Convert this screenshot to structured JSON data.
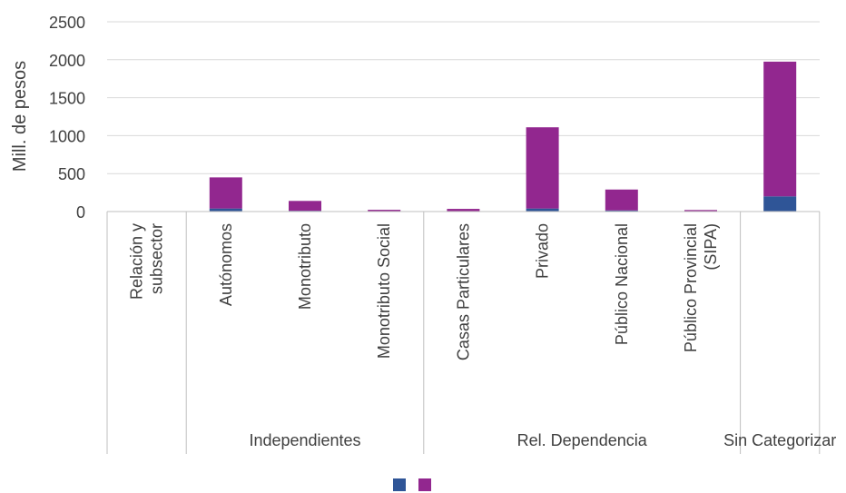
{
  "chart_data": {
    "type": "bar",
    "stacked": true,
    "ylabel": "Mill. de pesos",
    "ylim": [
      0,
      2500
    ],
    "yticks": [
      0,
      500,
      1000,
      1500,
      2000,
      2500
    ],
    "grid": true,
    "legend_position": "bottom",
    "header_category": "Relación y subsector",
    "categories": [
      "Autónomos",
      "Monotributo",
      "Monotributo Social",
      "Casas Particulares",
      "Privado",
      "Público Nacional",
      "Público Provincial (SIPA)",
      ""
    ],
    "groups": [
      {
        "label": "Independientes",
        "count": 3
      },
      {
        "label": "Rel. Dependencia",
        "count": 4
      },
      {
        "label": "Sin Categorizar",
        "count": 1
      }
    ],
    "series": [
      {
        "color": "#2f5597",
        "values": [
          40,
          10,
          3,
          5,
          40,
          15,
          3,
          200
        ]
      },
      {
        "color": "#92278f",
        "values": [
          410,
          130,
          20,
          30,
          1070,
          275,
          17,
          1775
        ]
      }
    ]
  }
}
